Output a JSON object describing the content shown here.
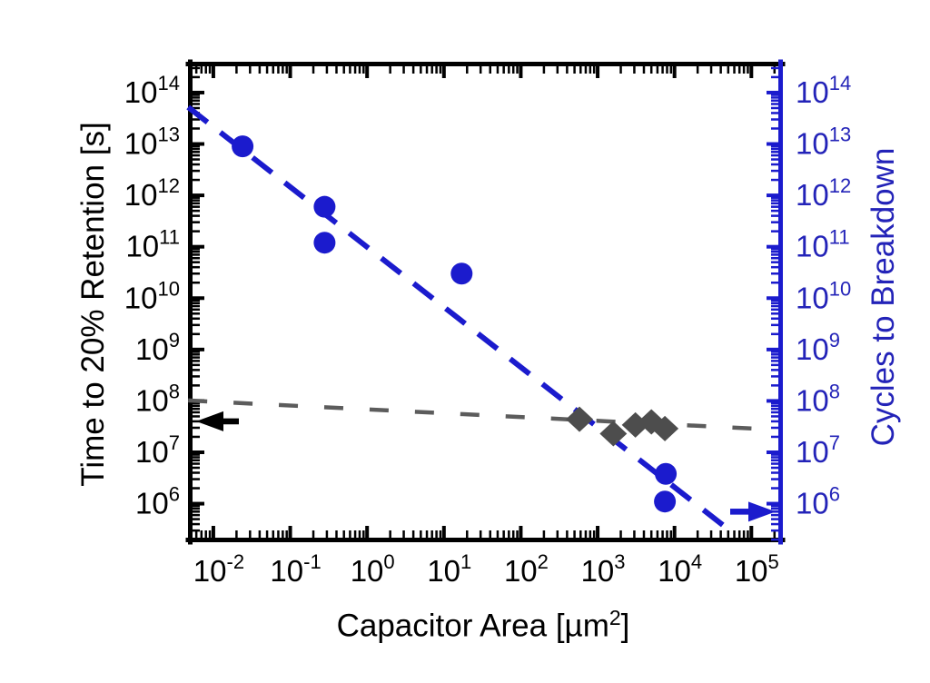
{
  "figure": {
    "background": "#ffffff",
    "blue_geometry": "#1b1bcd",
    "blue_text": "#2323b8",
    "gray_marker": "#4d4d4d",
    "gray_line": "#5c5c5c",
    "black": "#000000"
  },
  "chart_data": {
    "type": "scatter",
    "title": "",
    "grid": false,
    "legend": null,
    "x_axis": {
      "label_prefix": "Capacitor Area [µm",
      "label_sup": "2",
      "label_suffix": "]",
      "scale": "log",
      "range_log10": [
        -2.33,
        5.41
      ],
      "tick_exponents": [
        -2,
        -1,
        0,
        1,
        2,
        3,
        4,
        5
      ]
    },
    "y_axis_left": {
      "label": "Time to 20% Retention [s]",
      "scale": "log",
      "range_log10": [
        5.25,
        14.6
      ],
      "tick_exponents": [
        14,
        13,
        12,
        11,
        10,
        9,
        8,
        7,
        6
      ]
    },
    "y_axis_right": {
      "label": "Cycles to Breakdown",
      "scale": "log",
      "range_log10": [
        5.25,
        14.6
      ],
      "tick_exponents": [
        14,
        13,
        12,
        11,
        10,
        9,
        8,
        7,
        6
      ]
    },
    "series": [
      {
        "name": "cycles-to-breakdown",
        "axis": "right",
        "marker": "circle",
        "color": "#1b1bcd",
        "points": [
          [
            0.024,
            9000000000000.0
          ],
          [
            0.28,
            600000000000.0
          ],
          [
            0.28,
            120000000000.0
          ],
          [
            17,
            30000000000.0
          ],
          [
            7700,
            3800000.0
          ],
          [
            7500,
            1100000.0
          ]
        ]
      },
      {
        "name": "time-to-20pct-retention",
        "axis": "left",
        "marker": "diamond",
        "color": "#4d4d4d",
        "points": [
          [
            580,
            44000000.0
          ],
          [
            1600,
            23000000.0
          ],
          [
            3100,
            34000000.0
          ],
          [
            5000,
            39000000.0
          ],
          [
            7500,
            29000000.0
          ]
        ]
      }
    ],
    "trend_lines": [
      {
        "name": "retention-trend",
        "color": "#5c5c5c",
        "dash": [
          21,
          29
        ],
        "width": 4.5,
        "from": [
          0.0047,
          102000000.0
        ],
        "to": [
          210000,
          27500000.0
        ]
      },
      {
        "name": "cycles-trend",
        "color": "#1b1bcd",
        "dash": [
          27,
          18
        ],
        "width": 6,
        "from": [
          0.0047,
          52000000000000.0
        ],
        "to": [
          45000,
          360000.0
        ]
      }
    ],
    "axis_pointer_arrows": [
      {
        "name": "left-axis-arrow",
        "color": "#000000",
        "direction": "left",
        "y_value": 40000000.0
      },
      {
        "name": "right-axis-arrow",
        "color": "#1b1bcd",
        "direction": "right",
        "y_value": 700000.0
      }
    ]
  }
}
